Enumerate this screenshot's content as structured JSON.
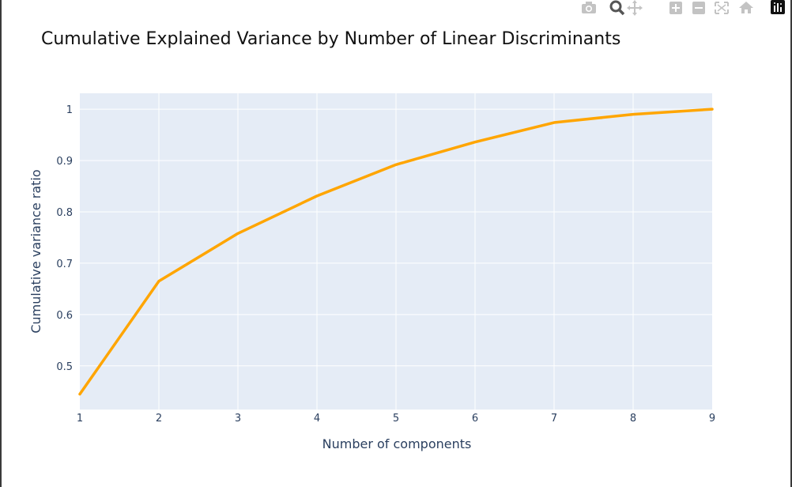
{
  "colors": {
    "line": "#FFA500",
    "plot_bg": "#E5ECF6",
    "grid": "#ffffff",
    "text": "#2a3f5f",
    "title": "#111111",
    "modebar_icon": "#c3c3c3"
  },
  "modebar": {
    "icons": [
      "camera-icon",
      "zoom-icon",
      "pan-icon",
      "zoom-in-icon",
      "zoom-out-icon",
      "autoscale-icon",
      "home-icon",
      "plotly-logo-icon"
    ]
  },
  "chart_data": {
    "type": "line",
    "title": "Cumulative Explained Variance by Number of Linear Discriminants",
    "xlabel": "Number of components",
    "ylabel": "Cumulative variance ratio",
    "x": [
      1,
      2,
      3,
      4,
      5,
      6,
      7,
      8,
      9
    ],
    "xticks": [
      "1",
      "2",
      "3",
      "4",
      "5",
      "6",
      "7",
      "8",
      "9"
    ],
    "yticks": [
      "0.5",
      "0.6",
      "0.7",
      "0.8",
      "0.9",
      "1"
    ],
    "ytick_values": [
      0.5,
      0.6,
      0.7,
      0.8,
      0.9,
      1.0
    ],
    "xlim": [
      1,
      9
    ],
    "ylim": [
      0.415,
      1.031
    ],
    "grid": true,
    "series": [
      {
        "values": [
          0.445,
          0.665,
          0.758,
          0.831,
          0.892,
          0.936,
          0.974,
          0.99,
          1.0
        ]
      }
    ]
  }
}
